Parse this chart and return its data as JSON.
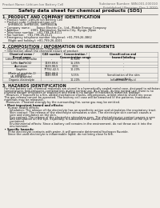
{
  "bg_color": "#f0ede8",
  "header_top_left": "Product Name: Lithium Ion Battery Cell",
  "header_top_right": "Substance Number: SBN-001-000010\nEstablished / Revision: Dec.1.2010",
  "title": "Safety data sheet for chemical products (SDS)",
  "section1_title": "1. PRODUCT AND COMPANY IDENTIFICATION",
  "section1_lines": [
    "  • Product name: Lithium Ion Battery Cell",
    "  • Product code: Cylindrical-type cell",
    "      SHF88500, SHF88500, SHF88500A",
    "  • Company name:       Sanyo Electric Co., Ltd., Mobile Energy Company",
    "  • Address:             2001, Kamimukai, Sumoto-City, Hyogo, Japan",
    "  • Telephone number:   +81-799-26-4111",
    "  • Fax number:   +81-799-26-4121",
    "  • Emergency telephone number (daytime): +81-799-26-3862",
    "      (Night and holiday): +81-799-26-4101"
  ],
  "section2_title": "2. COMPOSITION / INFORMATION ON INGREDIENTS",
  "section2_sub": "  • Substance or preparation: Preparation",
  "section2_sub2": "  • Information about the chemical nature of product:",
  "table_headers": [
    "Chemical name /\nBrand name",
    "CAS number",
    "Concentration /\nConcentration range",
    "Classification and\nhazard labeling"
  ],
  "table_rows": [
    [
      "Lithium cobalt tantalite\n(LiMn-Co-PbO4)",
      "-",
      "30-60%",
      "-"
    ],
    [
      "Iron",
      "7439-89-6",
      "15-25%",
      "-"
    ],
    [
      "Aluminum",
      "7429-90-5",
      "3-5%",
      "-"
    ],
    [
      "Graphite\n(Made of graphite-1)\n(Al-Mn graphite)",
      "77782-42-5\n7782-44-2",
      "10-20%",
      "-"
    ],
    [
      "Copper",
      "7440-50-8",
      "5-15%",
      "Sensitization of the skin\ngroup No.2"
    ],
    [
      "Organic electrolyte",
      "-",
      "10-20%",
      "Inflammable liquid"
    ]
  ],
  "section3_title": "3. HAZARDS IDENTIFICATION",
  "section3_text_lines": [
    "  For this battery cell, chemical materials are stored in a hermetically-sealed metal case, designed to withstand",
    "  temperatures and pressures-combinations during normal use. As a result, during normal use, there is no",
    "  physical danger of ignition or explosion and there is no danger of hazardous materials leakage.",
    "    However, if exposed to a fire, added mechanical shocks, decomposes, armlet electro shorts my occur.",
    "  The gas release cannot be operated. The battery cell case will be breached (if the patterns, hazardous",
    "  materials may be released).",
    "    Moreover, if heated strongly by the surrounding fire, some gas may be emitted."
  ],
  "section3_bullet1": "  • Most important hazard and effects:",
  "section3_human": "      Human health effects:",
  "section3_human_lines": [
    "        Inhalation: The release of the electrolyte has an anesthetic action and stimulates the respiratory tract.",
    "        Skin contact: The release of the electrolyte stimulates a skin. The electrolyte skin contact causes a",
    "        sore and stimulation on the skin.",
    "        Eye contact: The release of the electrolyte stimulates eyes. The electrolyte eye contact causes a sore",
    "        and stimulation on the eye. Especially, a substance that causes a strong inflammation of the eye is",
    "        contained.",
    "        Environmental effects: Since a battery cell remains in the environment, do not throw out it into the",
    "        environment."
  ],
  "section3_specific": "  • Specific hazards:",
  "section3_specific_lines": [
    "      If the electrolyte contacts with water, it will generate detrimental hydrogen fluoride.",
    "      Since the used electrolyte is inflammable liquid, do not bring close to fire."
  ],
  "font_size_header": 2.8,
  "font_size_title": 4.2,
  "font_size_section": 3.5,
  "font_size_body": 2.5,
  "font_size_table": 2.4,
  "text_color": "#111111",
  "table_line_color": "#999999",
  "divider_color": "#444444"
}
